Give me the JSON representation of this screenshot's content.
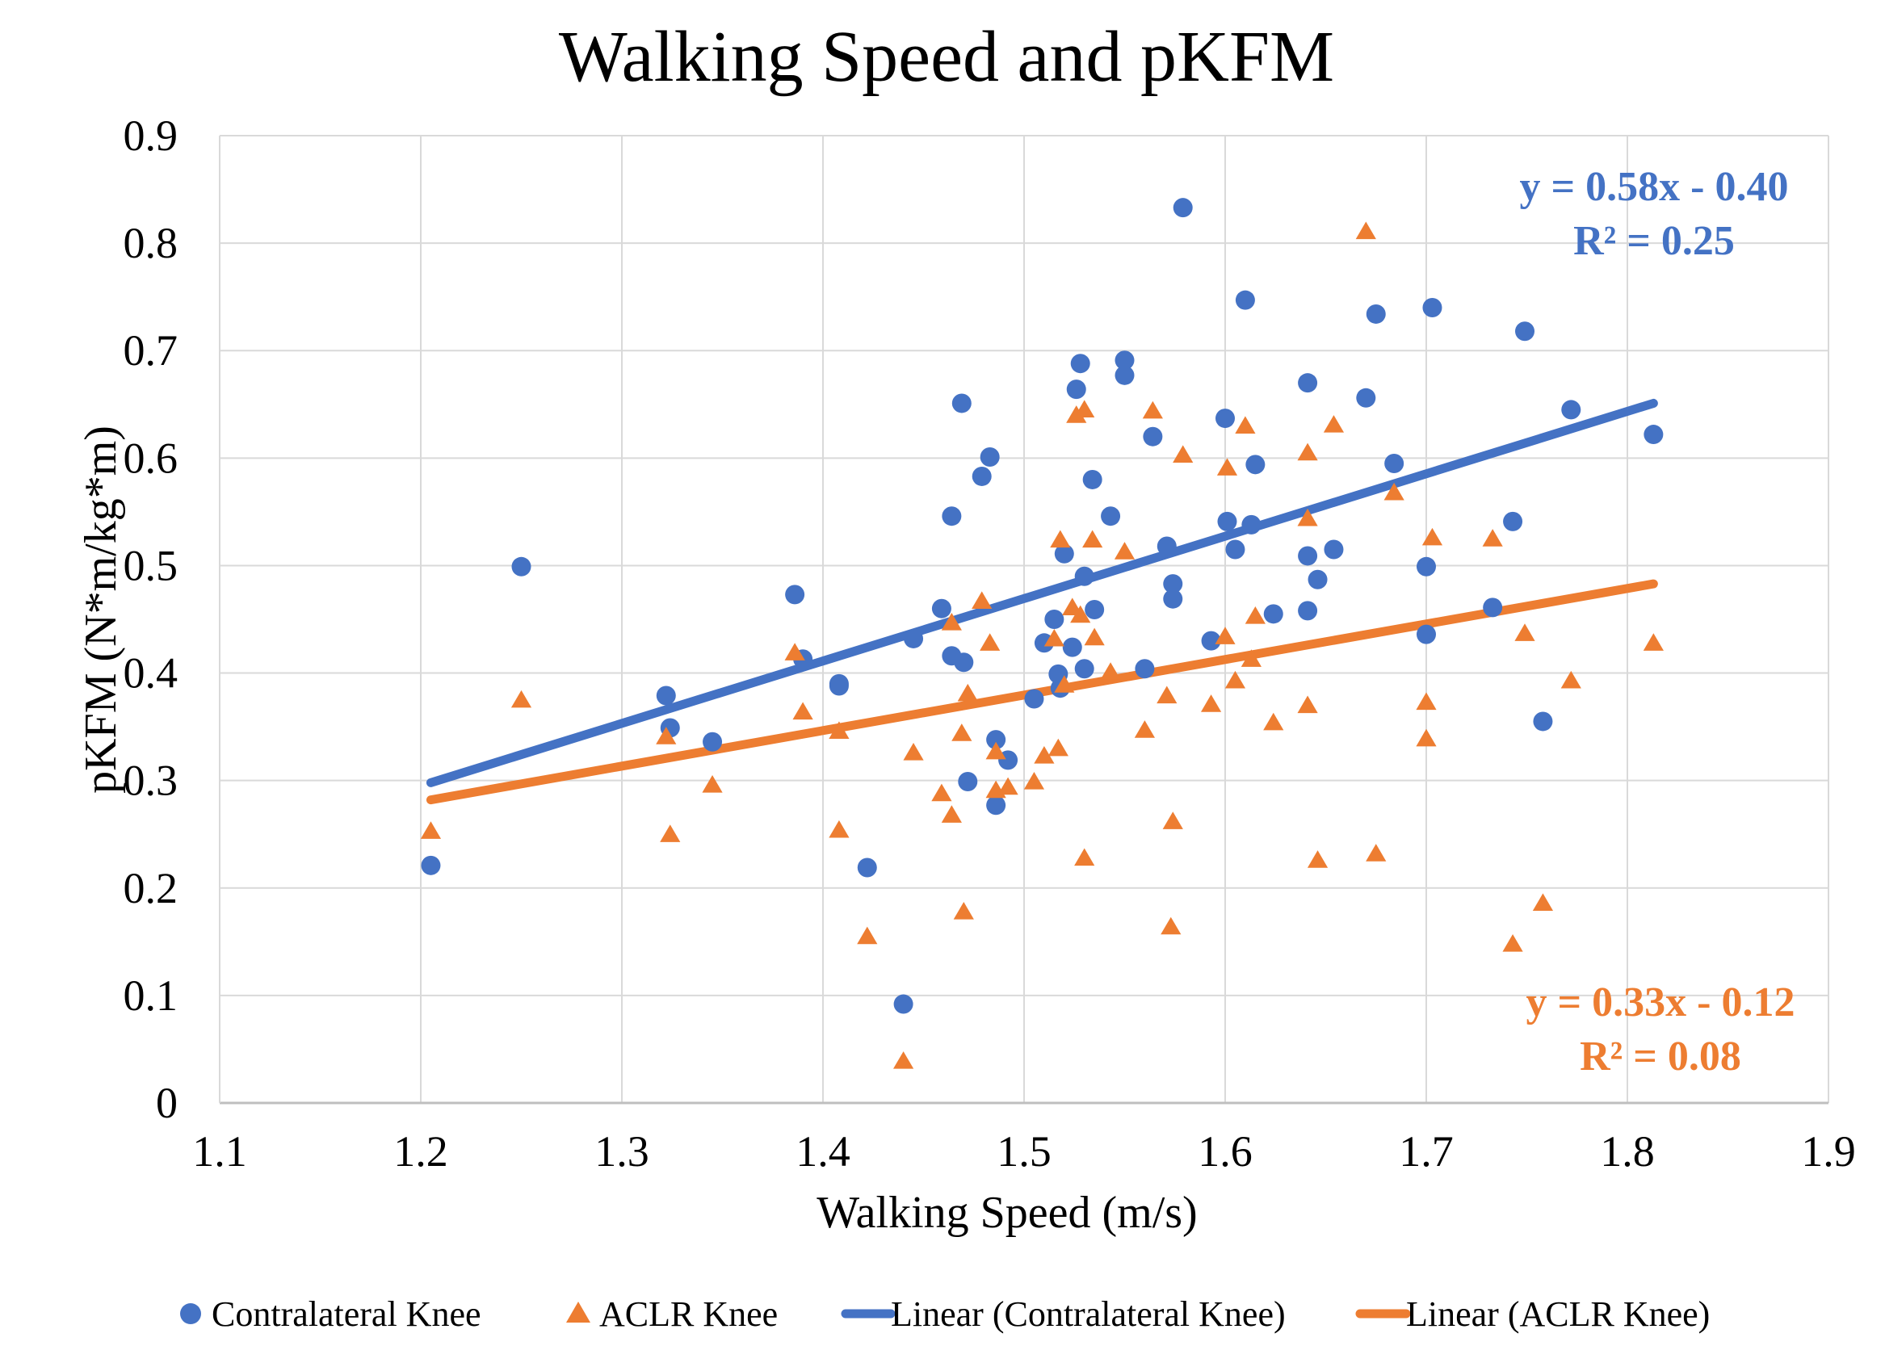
{
  "chart_data": {
    "type": "scatter",
    "title": "Walking Speed and pKFM",
    "xlabel": "Walking Speed (m/s)",
    "ylabel": "pKFM (N*m/kg*m)",
    "xlim": [
      1.1,
      1.9
    ],
    "ylim": [
      0,
      0.9
    ],
    "x_ticks": [
      "1.1",
      "1.2",
      "1.3",
      "1.4",
      "1.5",
      "1.6",
      "1.7",
      "1.8",
      "1.9"
    ],
    "y_ticks": [
      "0",
      "0.1",
      "0.2",
      "0.3",
      "0.4",
      "0.5",
      "0.6",
      "0.7",
      "0.8",
      "0.9"
    ],
    "grid": true,
    "legend_position": "bottom",
    "colors": {
      "contralateral": "#4472C4",
      "aclr": "#ED7D31"
    },
    "series": [
      {
        "name": "Contralateral Knee",
        "marker": "circle",
        "points": [
          [
            1.205,
            0.221
          ],
          [
            1.25,
            0.499
          ],
          [
            1.322,
            0.379
          ],
          [
            1.324,
            0.349
          ],
          [
            1.345,
            0.336
          ],
          [
            1.386,
            0.473
          ],
          [
            1.39,
            0.413
          ],
          [
            1.408,
            0.39
          ],
          [
            1.408,
            0.388
          ],
          [
            1.422,
            0.219
          ],
          [
            1.44,
            0.092
          ],
          [
            1.445,
            0.432
          ],
          [
            1.459,
            0.46
          ],
          [
            1.464,
            0.546
          ],
          [
            1.464,
            0.416
          ],
          [
            1.469,
            0.651
          ],
          [
            1.47,
            0.41
          ],
          [
            1.472,
            0.299
          ],
          [
            1.479,
            0.583
          ],
          [
            1.483,
            0.601
          ],
          [
            1.486,
            0.338
          ],
          [
            1.486,
            0.277
          ],
          [
            1.492,
            0.319
          ],
          [
            1.505,
            0.376
          ],
          [
            1.51,
            0.428
          ],
          [
            1.515,
            0.45
          ],
          [
            1.517,
            0.399
          ],
          [
            1.518,
            0.386
          ],
          [
            1.52,
            0.511
          ],
          [
            1.524,
            0.424
          ],
          [
            1.526,
            0.664
          ],
          [
            1.528,
            0.688
          ],
          [
            1.53,
            0.49
          ],
          [
            1.53,
            0.404
          ],
          [
            1.534,
            0.58
          ],
          [
            1.535,
            0.459
          ],
          [
            1.543,
            0.546
          ],
          [
            1.55,
            0.691
          ],
          [
            1.55,
            0.677
          ],
          [
            1.56,
            0.404
          ],
          [
            1.564,
            0.62
          ],
          [
            1.571,
            0.518
          ],
          [
            1.574,
            0.483
          ],
          [
            1.574,
            0.469
          ],
          [
            1.579,
            0.833
          ],
          [
            1.593,
            0.43
          ],
          [
            1.6,
            0.637
          ],
          [
            1.601,
            0.541
          ],
          [
            1.605,
            0.515
          ],
          [
            1.61,
            0.747
          ],
          [
            1.613,
            0.538
          ],
          [
            1.615,
            0.594
          ],
          [
            1.624,
            0.455
          ],
          [
            1.641,
            0.67
          ],
          [
            1.641,
            0.509
          ],
          [
            1.641,
            0.458
          ],
          [
            1.646,
            0.487
          ],
          [
            1.654,
            0.515
          ],
          [
            1.67,
            0.656
          ],
          [
            1.675,
            0.734
          ],
          [
            1.684,
            0.595
          ],
          [
            1.7,
            0.499
          ],
          [
            1.7,
            0.436
          ],
          [
            1.703,
            0.74
          ],
          [
            1.733,
            0.461
          ],
          [
            1.743,
            0.541
          ],
          [
            1.749,
            0.718
          ],
          [
            1.758,
            0.355
          ],
          [
            1.772,
            0.645
          ],
          [
            1.813,
            0.622
          ]
        ],
        "trendline": {
          "label": "Linear (Contralateral Knee)",
          "slope": 0.58,
          "intercept": -0.4,
          "from": [
            1.205,
            0.298
          ],
          "to": [
            1.813,
            0.651
          ]
        },
        "equation": "y = 0.58x - 0.40",
        "r2": "R² = 0.25"
      },
      {
        "name": "ACLR Knee",
        "marker": "triangle",
        "points": [
          [
            1.205,
            0.253
          ],
          [
            1.25,
            0.375
          ],
          [
            1.322,
            0.341
          ],
          [
            1.324,
            0.25
          ],
          [
            1.345,
            0.296
          ],
          [
            1.386,
            0.419
          ],
          [
            1.39,
            0.364
          ],
          [
            1.408,
            0.254
          ],
          [
            1.408,
            0.346
          ],
          [
            1.422,
            0.155
          ],
          [
            1.44,
            0.039
          ],
          [
            1.445,
            0.326
          ],
          [
            1.459,
            0.288
          ],
          [
            1.464,
            0.447
          ],
          [
            1.464,
            0.268
          ],
          [
            1.469,
            0.344
          ],
          [
            1.47,
            0.178
          ],
          [
            1.472,
            0.381
          ],
          [
            1.479,
            0.467
          ],
          [
            1.483,
            0.428
          ],
          [
            1.486,
            0.327
          ],
          [
            1.486,
            0.291
          ],
          [
            1.492,
            0.294
          ],
          [
            1.505,
            0.299
          ],
          [
            1.51,
            0.323
          ],
          [
            1.515,
            0.432
          ],
          [
            1.517,
            0.33
          ],
          [
            1.518,
            0.524
          ],
          [
            1.52,
            0.389
          ],
          [
            1.524,
            0.461
          ],
          [
            1.526,
            0.64
          ],
          [
            1.528,
            0.454
          ],
          [
            1.53,
            0.645
          ],
          [
            1.53,
            0.228
          ],
          [
            1.534,
            0.524
          ],
          [
            1.535,
            0.433
          ],
          [
            1.543,
            0.401
          ],
          [
            1.55,
            0.513
          ],
          [
            1.56,
            0.347
          ],
          [
            1.564,
            0.644
          ],
          [
            1.571,
            0.379
          ],
          [
            1.574,
            0.262
          ],
          [
            1.573,
            0.164
          ],
          [
            1.579,
            0.603
          ],
          [
            1.593,
            0.371
          ],
          [
            1.6,
            0.434
          ],
          [
            1.601,
            0.591
          ],
          [
            1.605,
            0.393
          ],
          [
            1.61,
            0.63
          ],
          [
            1.613,
            0.413
          ],
          [
            1.615,
            0.453
          ],
          [
            1.624,
            0.354
          ],
          [
            1.641,
            0.605
          ],
          [
            1.641,
            0.544
          ],
          [
            1.641,
            0.37
          ],
          [
            1.646,
            0.226
          ],
          [
            1.654,
            0.631
          ],
          [
            1.67,
            0.811
          ],
          [
            1.675,
            0.232
          ],
          [
            1.684,
            0.568
          ],
          [
            1.7,
            0.373
          ],
          [
            1.7,
            0.339
          ],
          [
            1.703,
            0.526
          ],
          [
            1.733,
            0.525
          ],
          [
            1.743,
            0.148
          ],
          [
            1.749,
            0.437
          ],
          [
            1.758,
            0.186
          ],
          [
            1.772,
            0.393
          ],
          [
            1.813,
            0.428
          ]
        ],
        "trendline": {
          "label": "Linear (ACLR Knee)",
          "slope": 0.33,
          "intercept": -0.12,
          "from": [
            1.205,
            0.282
          ],
          "to": [
            1.813,
            0.483
          ]
        },
        "equation": "y = 0.33x - 0.12",
        "r2": "R² = 0.08"
      }
    ],
    "legend": [
      "Contralateral Knee",
      "ACLR Knee",
      "Linear (Contralateral Knee)",
      "Linear (ACLR Knee)"
    ]
  }
}
